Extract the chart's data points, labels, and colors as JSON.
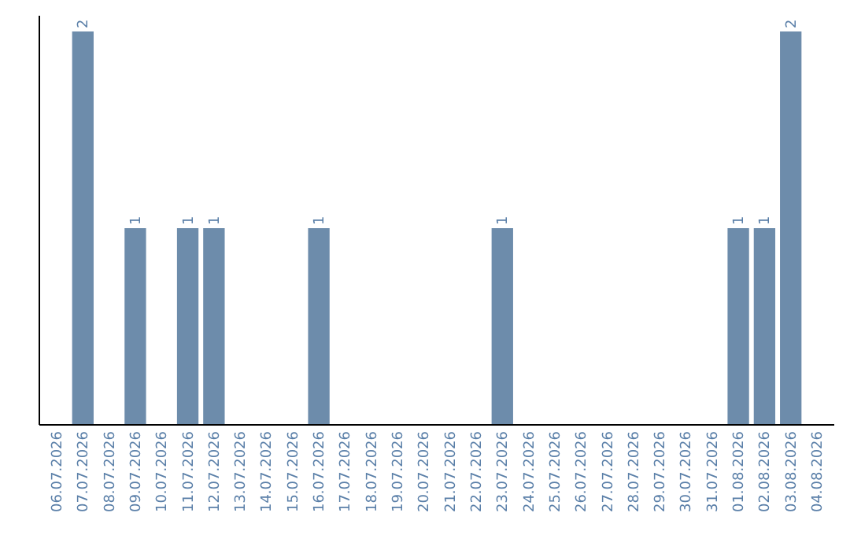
{
  "chart_data": {
    "type": "bar",
    "categories": [
      "06.07.2026",
      "07.07.2026",
      "08.07.2026",
      "09.07.2026",
      "10.07.2026",
      "11.07.2026",
      "12.07.2026",
      "13.07.2026",
      "14.07.2026",
      "15.07.2026",
      "16.07.2026",
      "17.07.2026",
      "18.07.2026",
      "19.07.2026",
      "20.07.2026",
      "21.07.2026",
      "22.07.2026",
      "23.07.2026",
      "24.07.2026",
      "25.07.2026",
      "26.07.2026",
      "27.07.2026",
      "28.07.2026",
      "29.07.2026",
      "30.07.2026",
      "31.07.2026",
      "01.08.2026",
      "02.08.2026",
      "03.08.2026",
      "04.08.2026"
    ],
    "values": [
      0,
      2,
      0,
      1,
      0,
      1,
      1,
      0,
      0,
      0,
      1,
      0,
      0,
      0,
      0,
      0,
      0,
      1,
      0,
      0,
      0,
      0,
      0,
      0,
      0,
      0,
      1,
      1,
      2,
      0
    ],
    "value_labels": [
      null,
      "2",
      null,
      "1",
      null,
      "1",
      "1",
      null,
      null,
      null,
      "1",
      null,
      null,
      null,
      null,
      null,
      null,
      "1",
      null,
      null,
      null,
      null,
      null,
      null,
      null,
      null,
      "1",
      "1",
      "2",
      null
    ],
    "color": "#6d8cab",
    "ylim": [
      0,
      2
    ],
    "tick_labels": "x"
  }
}
